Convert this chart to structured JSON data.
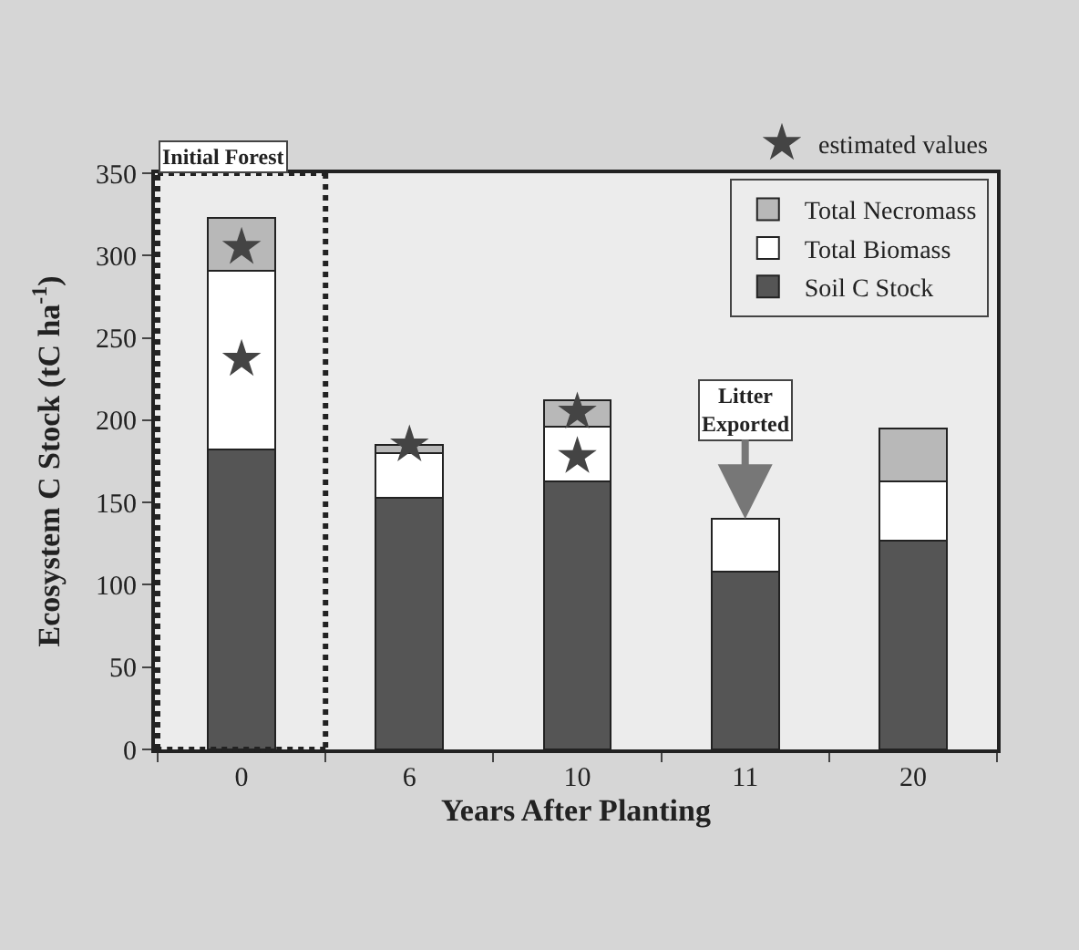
{
  "chart_data": {
    "type": "bar",
    "stacked": true,
    "xlabel": "Years After Planting",
    "ylabel": "Ecosystem C Stock (tC ha$^{-1}$)",
    "categories": [
      "0",
      "6",
      "10",
      "11",
      "20"
    ],
    "series": [
      {
        "name": "Soil C Stock",
        "color": "#555555",
        "values": [
          182,
          153,
          163,
          108,
          127
        ]
      },
      {
        "name": "Total Biomass",
        "color": "#ffffff",
        "values": [
          109,
          27,
          33,
          32,
          36
        ]
      },
      {
        "name": "Total Necromass",
        "color": "#b8b8b8",
        "values": [
          32,
          5,
          16,
          null,
          32
        ]
      },
      {
        "name": "estimated values",
        "type": "scatter",
        "marker": "star",
        "color": "#444444",
        "x": [
          "0",
          "0",
          "6",
          "10",
          "10"
        ],
        "values": [
          305,
          237,
          185,
          205,
          178
        ]
      }
    ],
    "ylim": [
      0,
      350
    ],
    "yticks": [
      0,
      50,
      100,
      150,
      200,
      250,
      300,
      350
    ],
    "grid": false,
    "legend": "top right",
    "annotations": [
      "Initial Forest",
      {
        "text": "Litter Exported",
        "x": "11",
        "y": 140
      }
    ]
  }
}
